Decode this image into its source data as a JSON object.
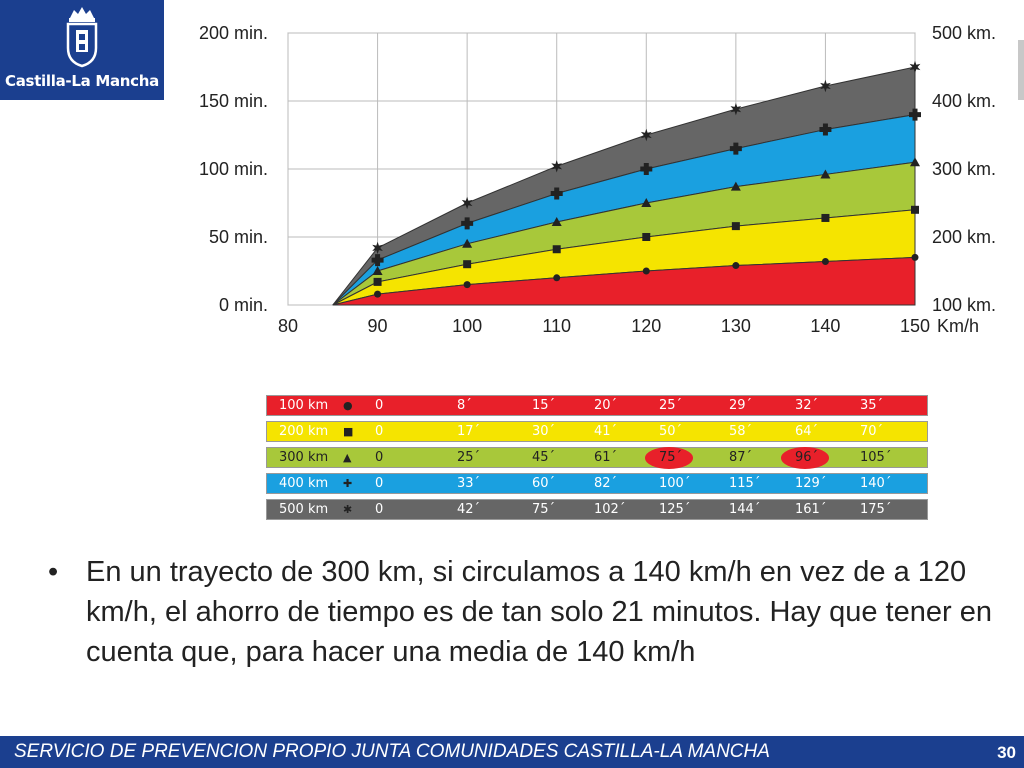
{
  "logo": {
    "name": "Castilla-La Mancha"
  },
  "chart_data": {
    "type": "area",
    "x": [
      85,
      90,
      100,
      110,
      120,
      130,
      140,
      150
    ],
    "x_ticks": [
      "80",
      "90",
      "100",
      "110",
      "120",
      "130",
      "140",
      "150"
    ],
    "x_unit": "Km/h",
    "y_ticks_left": [
      "0 min.",
      "50 min.",
      "100 min.",
      "150 min.",
      "200 min."
    ],
    "y_ticks_right": [
      "100 km.",
      "200 km.",
      "300 km.",
      "400 km.",
      "500 km."
    ],
    "xlim": [
      80,
      150
    ],
    "ylim": [
      0,
      200
    ],
    "grid": true,
    "series": [
      {
        "name": "100 km",
        "color": "#e8202a",
        "marker": "circle",
        "values": [
          0,
          8,
          15,
          20,
          25,
          29,
          32,
          35
        ]
      },
      {
        "name": "200 km",
        "color": "#f5e400",
        "marker": "square",
        "values": [
          0,
          17,
          30,
          41,
          50,
          58,
          64,
          70
        ]
      },
      {
        "name": "300 km",
        "color": "#a8c83a",
        "marker": "triangle",
        "values": [
          0,
          25,
          45,
          61,
          75,
          87,
          96,
          105
        ]
      },
      {
        "name": "400 km",
        "color": "#1aa0e0",
        "marker": "cross",
        "values": [
          0,
          33,
          60,
          82,
          100,
          115,
          129,
          140
        ]
      },
      {
        "name": "500 km",
        "color": "#666666",
        "marker": "star",
        "values": [
          0,
          42,
          75,
          102,
          125,
          144,
          161,
          175
        ]
      }
    ]
  },
  "table": {
    "rows": [
      {
        "label": "100 km",
        "cells": [
          "0",
          "8´",
          "15´",
          "20´",
          "25´",
          "29´",
          "32´",
          "35´"
        ]
      },
      {
        "label": "200 km",
        "cells": [
          "0",
          "17´",
          "30´",
          "41´",
          "50´",
          "58´",
          "64´",
          "70´"
        ]
      },
      {
        "label": "300 km",
        "cells": [
          "0",
          "25´",
          "45´",
          "61´",
          "75´",
          "87´",
          "96´",
          "105´"
        ]
      },
      {
        "label": "400 km",
        "cells": [
          "0",
          "33´",
          "60´",
          "82´",
          "100´",
          "115´",
          "129´",
          "140´"
        ]
      },
      {
        "label": "500 km",
        "cells": [
          "0",
          "42´",
          "75´",
          "102´",
          "125´",
          "144´",
          "161´",
          "175´"
        ]
      }
    ],
    "row_colors": [
      "#e8202a",
      "#f5e400",
      "#a8c83a",
      "#1aa0e0",
      "#666666"
    ],
    "text_colors": [
      "#ffffff",
      "#ffffff",
      "#222222",
      "#ffffff",
      "#ffffff"
    ],
    "highlighted": [
      {
        "row": 2,
        "col": 4
      },
      {
        "row": 2,
        "col": 6
      }
    ]
  },
  "bullet": {
    "symbol": "•",
    "text": "En un trayecto de 300 km, si circulamos a 140 km/h en vez de a 120 km/h, el ahorro de tiempo es de tan solo 21 minutos. Hay que tener en cuenta que, para hacer una media de 140 km/h"
  },
  "footer": {
    "text": "SERVICIO DE PREVENCION PROPIO JUNTA COMUNIDADES CASTILLA-LA MANCHA",
    "page": "30"
  }
}
